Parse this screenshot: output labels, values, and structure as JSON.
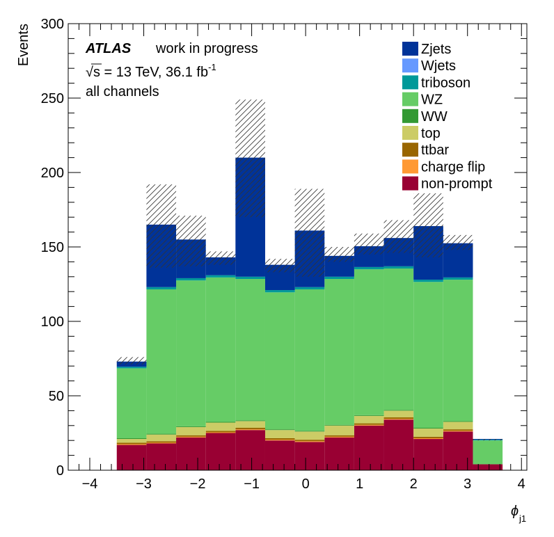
{
  "chart_data": {
    "type": "bar",
    "stacked": true,
    "x_bin_edges": [
      -3.5,
      -2.95,
      -2.4,
      -1.85,
      -1.3,
      -0.75,
      -0.2,
      0.35,
      0.9,
      1.45,
      2.0,
      2.55,
      3.1,
      3.65
    ],
    "xlim": [
      -4.4,
      4.1
    ],
    "ylim": [
      0,
      300
    ],
    "x_ticks": [
      "−4",
      "−3",
      "−2",
      "−1",
      "0",
      "1",
      "2",
      "3",
      "4"
    ],
    "y_ticks": [
      "0",
      "50",
      "100",
      "150",
      "200",
      "250",
      "300"
    ],
    "xlabel": "ϕ",
    "xlabel_sub": "j1",
    "ylabel": "Events",
    "atlas_label": "ATLAS",
    "atlas_status": "work in progress",
    "energy_label": "√s = 13 TeV, 36.1 fb",
    "energy_sup": "-1",
    "channel_label": "all channels",
    "legend_position": "top-right",
    "series": [
      {
        "name": "non-prompt",
        "color": "#990033",
        "values": [
          17,
          18,
          22,
          25,
          27,
          20,
          19,
          22,
          30,
          34,
          21,
          26,
          4
        ]
      },
      {
        "name": "charge flip",
        "color": "#ff9933",
        "values": [
          0.5,
          0.5,
          0.5,
          0.5,
          0.5,
          0.5,
          0.5,
          0.5,
          0.5,
          0.5,
          0.5,
          0.5,
          0
        ]
      },
      {
        "name": "ttbar",
        "color": "#996600",
        "values": [
          1,
          1,
          1,
          1,
          1,
          1,
          1,
          1,
          1,
          1,
          1,
          1,
          0
        ]
      },
      {
        "name": "top",
        "color": "#cccc66",
        "values": [
          2.5,
          4.5,
          5.5,
          5.5,
          4.5,
          5.5,
          5.5,
          6.5,
          5,
          4.5,
          5.5,
          5,
          0
        ]
      },
      {
        "name": "WW",
        "color": "#339933",
        "values": [
          0.5,
          0.5,
          0.5,
          0.5,
          0.5,
          0.5,
          0.5,
          0.5,
          0.5,
          0.5,
          0.5,
          0.5,
          0
        ]
      },
      {
        "name": "WZ",
        "color": "#66cc66",
        "values": [
          47,
          97,
          98,
          97,
          95,
          92,
          95,
          98,
          98,
          95,
          98,
          95,
          16
        ]
      },
      {
        "name": "triboson",
        "color": "#009999",
        "values": [
          1,
          1.5,
          1.5,
          1.5,
          1.5,
          1.5,
          1.5,
          1.5,
          1.5,
          1.5,
          1.5,
          1.5,
          0.5
        ]
      },
      {
        "name": "Wjets",
        "color": "#6699ff",
        "values": [
          0,
          0,
          0,
          0,
          0,
          0,
          0,
          0,
          0,
          0,
          0,
          0,
          0
        ]
      },
      {
        "name": "Zjets",
        "color": "#003399",
        "values": [
          3.5,
          42,
          26,
          12,
          80,
          17,
          38,
          14,
          14,
          19,
          36,
          23,
          0.5
        ]
      }
    ],
    "uncertainty_band": {
      "low": [
        71,
        136,
        137,
        138,
        170,
        133,
        130,
        140,
        145,
        146,
        143,
        148,
        20
      ],
      "high": [
        76,
        192,
        171,
        147,
        249,
        142,
        189,
        150,
        159,
        168,
        186,
        158,
        21
      ]
    }
  }
}
